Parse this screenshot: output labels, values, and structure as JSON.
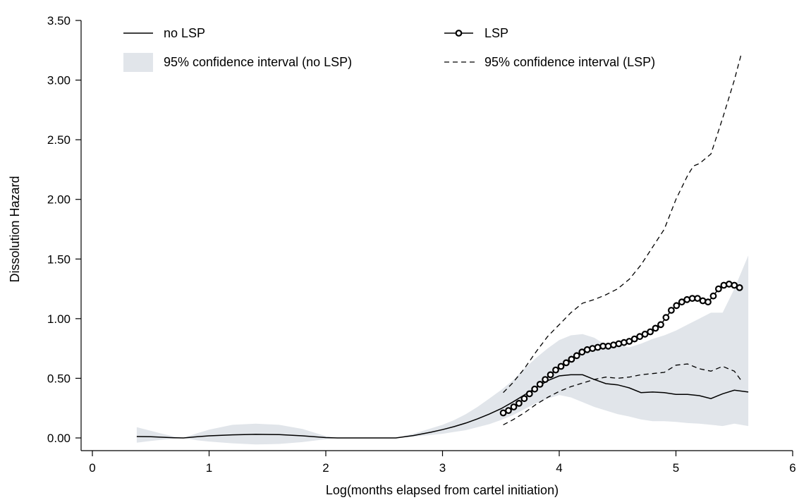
{
  "chart_data": {
    "type": "line",
    "title": "",
    "xlabel": "Log(months elapsed from cartel initiation)",
    "ylabel": "Dissolution Hazard",
    "xlim": [
      0,
      6
    ],
    "ylim": [
      0,
      3.5
    ],
    "x_ticks": [
      0,
      1,
      2,
      3,
      4,
      5,
      6
    ],
    "y_ticks": [
      0,
      0.5,
      1,
      1.5,
      2,
      2.5,
      3,
      3.5
    ],
    "y_tick_labels": [
      "0.00",
      "0.50",
      "1.00",
      "1.50",
      "2.00",
      "2.50",
      "3.00",
      "3.50"
    ],
    "x_tick_labels": [
      "0",
      "1",
      "2",
      "3",
      "4",
      "5",
      "6"
    ],
    "grid": false,
    "legend_position": "top",
    "legend": [
      {
        "key": "no_lsp",
        "label": "no LSP"
      },
      {
        "key": "lsp",
        "label": "LSP"
      },
      {
        "key": "ci_no_lsp",
        "label": "95% confidence interval (no LSP)"
      },
      {
        "key": "ci_lsp",
        "label": "95% confidence interval (LSP)"
      }
    ],
    "colors": {
      "no_lsp_line": "#000000",
      "lsp_line": "#000000",
      "ci_fill": "#e1e5ea",
      "ci_lsp_line": "#000000"
    },
    "series": {
      "no_lsp": {
        "x": [
          0.38,
          0.5,
          0.6,
          0.7,
          0.78,
          0.9,
          1.0,
          1.2,
          1.4,
          1.6,
          1.8,
          2.0,
          2.1,
          2.3,
          2.5,
          2.6,
          2.75,
          2.9,
          3.0,
          3.1,
          3.2,
          3.3,
          3.4,
          3.5,
          3.6,
          3.7,
          3.8,
          3.9,
          4.0,
          4.1,
          4.2,
          4.3,
          4.4,
          4.5,
          4.6,
          4.7,
          4.8,
          4.9,
          5.0,
          5.1,
          5.2,
          5.3,
          5.4,
          5.5,
          5.62
        ],
        "y": [
          0.012,
          0.01,
          0.006,
          0.002,
          0.0,
          0.01,
          0.018,
          0.026,
          0.03,
          0.028,
          0.018,
          0.003,
          0.0,
          0.0,
          0.0,
          0.0,
          0.02,
          0.048,
          0.07,
          0.095,
          0.125,
          0.16,
          0.2,
          0.245,
          0.3,
          0.36,
          0.42,
          0.48,
          0.52,
          0.53,
          0.53,
          0.49,
          0.455,
          0.445,
          0.42,
          0.38,
          0.385,
          0.38,
          0.365,
          0.365,
          0.355,
          0.33,
          0.37,
          0.4,
          0.385
        ]
      },
      "no_lsp_ci": {
        "x": [
          0.38,
          0.5,
          0.6,
          0.7,
          0.78,
          0.9,
          1.0,
          1.2,
          1.4,
          1.6,
          1.8,
          2.0,
          2.1,
          2.3,
          2.5,
          2.6,
          2.75,
          2.9,
          3.0,
          3.1,
          3.2,
          3.3,
          3.4,
          3.5,
          3.6,
          3.7,
          3.8,
          3.9,
          4.0,
          4.1,
          4.2,
          4.3,
          4.4,
          4.5,
          4.6,
          4.7,
          4.8,
          4.9,
          5.0,
          5.1,
          5.2,
          5.3,
          5.4,
          5.5,
          5.62
        ],
        "lower": [
          -0.04,
          -0.025,
          -0.015,
          -0.005,
          0.0,
          -0.02,
          -0.03,
          -0.045,
          -0.055,
          -0.05,
          -0.035,
          -0.01,
          0.0,
          0.0,
          0.0,
          0.0,
          0.01,
          0.025,
          0.035,
          0.05,
          0.065,
          0.09,
          0.115,
          0.15,
          0.19,
          0.24,
          0.29,
          0.33,
          0.36,
          0.34,
          0.3,
          0.26,
          0.23,
          0.2,
          0.18,
          0.155,
          0.14,
          0.14,
          0.135,
          0.125,
          0.12,
          0.11,
          0.1,
          0.12,
          0.1
        ],
        "upper": [
          0.09,
          0.06,
          0.035,
          0.012,
          0.0,
          0.04,
          0.07,
          0.11,
          0.12,
          0.11,
          0.075,
          0.015,
          0.0,
          0.0,
          0.0,
          0.0,
          0.035,
          0.08,
          0.11,
          0.15,
          0.2,
          0.26,
          0.33,
          0.4,
          0.48,
          0.58,
          0.67,
          0.75,
          0.82,
          0.86,
          0.87,
          0.84,
          0.78,
          0.78,
          0.76,
          0.79,
          0.83,
          0.86,
          0.9,
          0.95,
          1.0,
          1.05,
          1.05,
          1.25,
          1.53
        ]
      },
      "lsp": {
        "x": [
          3.52,
          3.565,
          3.61,
          3.655,
          3.7,
          3.745,
          3.79,
          3.835,
          3.88,
          3.925,
          3.97,
          4.015,
          4.06,
          4.105,
          4.15,
          4.195,
          4.24,
          4.285,
          4.33,
          4.375,
          4.42,
          4.465,
          4.51,
          4.555,
          4.6,
          4.645,
          4.69,
          4.735,
          4.78,
          4.825,
          4.87,
          4.915,
          4.96,
          5.005,
          5.05,
          5.095,
          5.14,
          5.185,
          5.23,
          5.275,
          5.32,
          5.365,
          5.41,
          5.455,
          5.5,
          5.545
        ],
        "y": [
          0.21,
          0.23,
          0.26,
          0.29,
          0.33,
          0.37,
          0.41,
          0.45,
          0.49,
          0.53,
          0.57,
          0.6,
          0.63,
          0.66,
          0.69,
          0.72,
          0.74,
          0.75,
          0.76,
          0.77,
          0.77,
          0.78,
          0.79,
          0.8,
          0.81,
          0.83,
          0.85,
          0.87,
          0.89,
          0.92,
          0.95,
          1.01,
          1.07,
          1.11,
          1.14,
          1.16,
          1.17,
          1.17,
          1.15,
          1.14,
          1.19,
          1.25,
          1.28,
          1.29,
          1.28,
          1.26
        ]
      },
      "lsp_ci": {
        "x": [
          3.52,
          3.6,
          3.7,
          3.8,
          3.9,
          4.0,
          4.1,
          4.2,
          4.3,
          4.4,
          4.5,
          4.6,
          4.7,
          4.8,
          4.9,
          5.0,
          5.1,
          5.15,
          5.2,
          5.3,
          5.4,
          5.5,
          5.56
        ],
        "lower": [
          0.11,
          0.15,
          0.21,
          0.28,
          0.34,
          0.39,
          0.43,
          0.46,
          0.49,
          0.51,
          0.5,
          0.51,
          0.53,
          0.54,
          0.55,
          0.61,
          0.62,
          0.6,
          0.58,
          0.56,
          0.6,
          0.56,
          0.48
        ],
        "upper": [
          0.38,
          0.46,
          0.58,
          0.72,
          0.85,
          0.95,
          1.05,
          1.13,
          1.16,
          1.2,
          1.25,
          1.33,
          1.45,
          1.6,
          1.75,
          2.0,
          2.2,
          2.28,
          2.3,
          2.38,
          2.68,
          3.0,
          3.22
        ]
      }
    }
  }
}
